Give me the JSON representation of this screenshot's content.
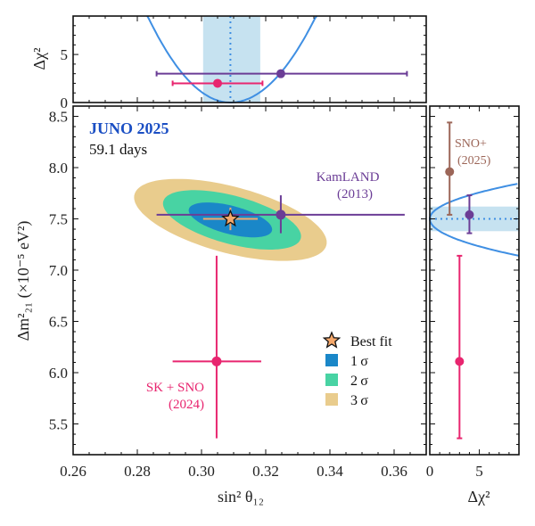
{
  "chart_data": {
    "type": "scatter",
    "annotations": {
      "experiment": "JUNO 2025",
      "exposure": "59.1 days",
      "kamland": [
        "KamLAND",
        "(2013)"
      ],
      "sksno": [
        "SK + SNO",
        "(2024)"
      ],
      "snoplus": [
        "SNO+",
        "(2025)"
      ]
    },
    "legend": {
      "placement": "lower-right",
      "entries": [
        "Best fit",
        "1 σ",
        "2 σ",
        "3 σ"
      ]
    },
    "colors": {
      "sigma1": "#1a87c8",
      "sigma2": "#48d3a3",
      "sigma3": "#e9cc8d",
      "best_fit": "#f5a86b",
      "kamland": "#6b3d96",
      "sksno": "#e8256f",
      "snoplus": "#9c6658",
      "juno_curve": "#3f8fe3",
      "juno_band": "#c6e2f0"
    },
    "main": {
      "xlabel": "sin² θ₁₂",
      "ylabel": "Δm²₂₁ (×10⁻⁵ eV²)",
      "xlim": [
        0.26,
        0.37
      ],
      "ylim": [
        5.2,
        8.6
      ],
      "x_ticks": [
        "0.26",
        "0.28",
        "0.30",
        "0.32",
        "0.34",
        "0.36"
      ],
      "y_ticks": [
        "5.5",
        "6.0",
        "6.5",
        "7.0",
        "7.5",
        "8.0",
        "8.5"
      ],
      "best_fit": {
        "x": 0.309,
        "y": 7.5,
        "x_err": [
          0.3005,
          0.3175
        ],
        "y_err": [
          7.39,
          7.61
        ]
      },
      "contours": [
        {
          "name": "3 σ",
          "cx": 0.309,
          "cy": 7.49,
          "half_width_x": 0.03,
          "half_width_y": 0.4,
          "correlation": -0.55
        },
        {
          "name": "2 σ",
          "cx": 0.3095,
          "cy": 7.49,
          "half_width_x": 0.0215,
          "half_width_y": 0.29,
          "correlation": -0.55
        },
        {
          "name": "1 σ",
          "cx": 0.309,
          "cy": 7.49,
          "half_width_x": 0.013,
          "half_width_y": 0.17,
          "correlation": -0.55
        }
      ],
      "points": [
        {
          "name": "KamLAND (2013)",
          "x": 0.3247,
          "y": 7.54,
          "x_err": [
            0.286,
            0.3633
          ],
          "y_err": [
            7.36,
            7.73
          ]
        },
        {
          "name": "SK + SNO (2024)",
          "x": 0.3047,
          "y": 6.11,
          "x_err": [
            0.291,
            0.3186
          ],
          "y_err": [
            5.36,
            7.14
          ]
        }
      ]
    },
    "top": {
      "ylabel": "Δχ²",
      "ylim": [
        0,
        9
      ],
      "y_ticks": [
        "0",
        "5"
      ],
      "juno_curve": {
        "min_x": 0.309,
        "sigma_left": 0.0086,
        "sigma_right": 0.0089
      },
      "juno_band": [
        0.3005,
        0.3183
      ],
      "points": [
        {
          "name": "KamLAND (2013)",
          "x": 0.3247,
          "dchi2": 3.0,
          "x_err": [
            0.286,
            0.364
          ]
        },
        {
          "name": "SK + SNO (2024)",
          "x": 0.305,
          "dchi2": 2.0,
          "x_err": [
            0.291,
            0.319
          ]
        }
      ]
    },
    "right": {
      "xlabel": "Δχ²",
      "xlim": [
        0,
        9
      ],
      "x_ticks": [
        "0",
        "5"
      ],
      "juno_curve": {
        "min_y": 7.5,
        "sigma_up": 0.115,
        "sigma_down": 0.12
      },
      "juno_band": [
        7.38,
        7.62
      ],
      "points": [
        {
          "name": "SNO+ (2025)",
          "dchi2": 2.0,
          "y": 7.96,
          "y_err": [
            7.54,
            8.44
          ]
        },
        {
          "name": "KamLAND (2013)",
          "dchi2": 4.0,
          "y": 7.54,
          "y_err": [
            7.36,
            7.73
          ]
        },
        {
          "name": "SK + SNO (2024)",
          "dchi2": 3.0,
          "y": 6.11,
          "y_err": [
            5.36,
            7.14
          ]
        }
      ]
    }
  }
}
